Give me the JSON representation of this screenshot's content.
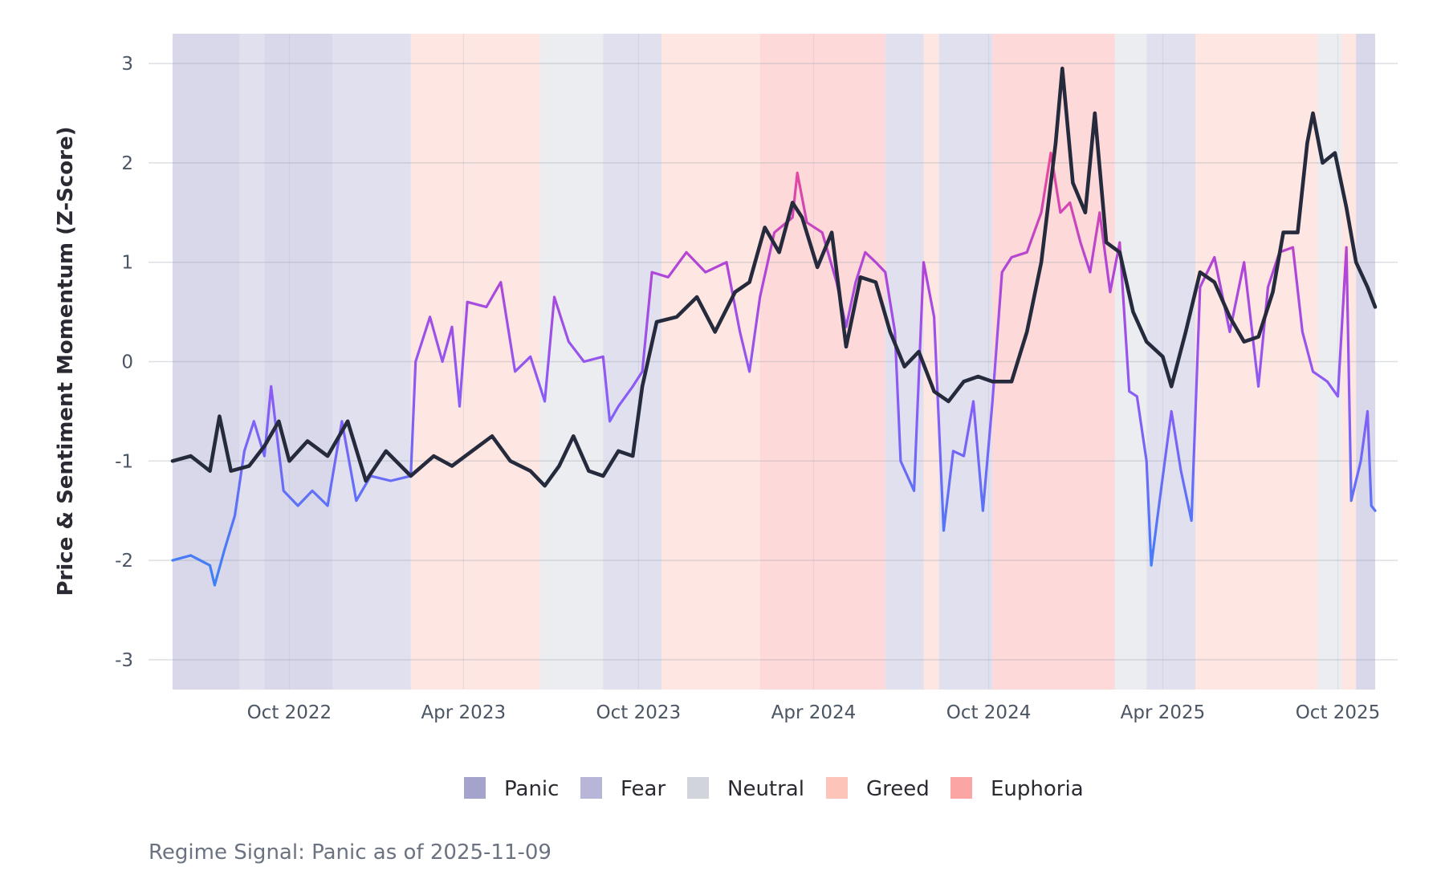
{
  "chart_data": {
    "type": "line",
    "title": "",
    "ylabel": "Price & Sentiment Momentum (Z-Score)",
    "xlabel": "",
    "ylim": [
      -3.3,
      3.3
    ],
    "xlim": [
      "2022-06-01",
      "2025-11-09"
    ],
    "y_ticks": [
      "3",
      "2",
      "1",
      "0",
      "-1",
      "-2",
      "-3"
    ],
    "x_ticks": [
      {
        "date": "2022-10-01",
        "label": "Oct 2022"
      },
      {
        "date": "2023-04-01",
        "label": "Apr 2023"
      },
      {
        "date": "2023-10-01",
        "label": "Oct 2023"
      },
      {
        "date": "2024-04-01",
        "label": "Apr 2024"
      },
      {
        "date": "2024-10-01",
        "label": "Oct 2024"
      },
      {
        "date": "2025-04-01",
        "label": "Apr 2025"
      },
      {
        "date": "2025-10-01",
        "label": "Oct 2025"
      }
    ],
    "grid": true,
    "legend_position": "bottom",
    "legend": [
      {
        "name": "Panic",
        "color": "#a3a3cc"
      },
      {
        "name": "Fear",
        "color": "#b7b5d8"
      },
      {
        "name": "Neutral",
        "color": "#d1d5db"
      },
      {
        "name": "Greed",
        "color": "#fdc4b9"
      },
      {
        "name": "Euphoria",
        "color": "#fca5a5"
      }
    ],
    "regime_bands": [
      {
        "start": "2022-06-01",
        "end": "2022-08-10",
        "regime": "Panic"
      },
      {
        "start": "2022-08-10",
        "end": "2022-09-05",
        "regime": "Fear"
      },
      {
        "start": "2022-09-05",
        "end": "2022-11-15",
        "regime": "Panic"
      },
      {
        "start": "2022-11-15",
        "end": "2023-02-05",
        "regime": "Fear"
      },
      {
        "start": "2023-02-05",
        "end": "2023-06-20",
        "regime": "Greed"
      },
      {
        "start": "2023-06-20",
        "end": "2023-08-25",
        "regime": "Neutral"
      },
      {
        "start": "2023-08-25",
        "end": "2023-10-25",
        "regime": "Fear"
      },
      {
        "start": "2023-10-25",
        "end": "2024-02-05",
        "regime": "Greed"
      },
      {
        "start": "2024-02-05",
        "end": "2024-06-15",
        "regime": "Euphoria"
      },
      {
        "start": "2024-06-15",
        "end": "2024-07-25",
        "regime": "Fear"
      },
      {
        "start": "2024-07-25",
        "end": "2024-08-10",
        "regime": "Greed"
      },
      {
        "start": "2024-08-10",
        "end": "2024-10-05",
        "regime": "Fear"
      },
      {
        "start": "2024-10-05",
        "end": "2025-02-10",
        "regime": "Euphoria"
      },
      {
        "start": "2025-02-10",
        "end": "2025-03-15",
        "regime": "Neutral"
      },
      {
        "start": "2025-03-15",
        "end": "2025-05-05",
        "regime": "Fear"
      },
      {
        "start": "2025-05-05",
        "end": "2025-09-10",
        "regime": "Greed"
      },
      {
        "start": "2025-09-10",
        "end": "2025-10-05",
        "regime": "Neutral"
      },
      {
        "start": "2025-10-05",
        "end": "2025-10-20",
        "regime": "Greed"
      },
      {
        "start": "2025-10-20",
        "end": "2025-11-09",
        "regime": "Panic"
      }
    ],
    "series": [
      {
        "color": "#252a3d",
        "points": [
          [
            "2022-06-01",
            -1.0
          ],
          [
            "2022-06-20",
            -0.95
          ],
          [
            "2022-07-10",
            -1.1
          ],
          [
            "2022-07-20",
            -0.55
          ],
          [
            "2022-08-01",
            -1.1
          ],
          [
            "2022-08-20",
            -1.05
          ],
          [
            "2022-09-05",
            -0.85
          ],
          [
            "2022-09-20",
            -0.6
          ],
          [
            "2022-10-01",
            -1.0
          ],
          [
            "2022-10-20",
            -0.8
          ],
          [
            "2022-11-10",
            -0.95
          ],
          [
            "2022-12-01",
            -0.6
          ],
          [
            "2022-12-20",
            -1.2
          ],
          [
            "2023-01-10",
            -0.9
          ],
          [
            "2023-02-05",
            -1.15
          ],
          [
            "2023-03-01",
            -0.95
          ],
          [
            "2023-03-20",
            -1.05
          ],
          [
            "2023-04-10",
            -0.9
          ],
          [
            "2023-05-01",
            -0.75
          ],
          [
            "2023-05-20",
            -1.0
          ],
          [
            "2023-06-10",
            -1.1
          ],
          [
            "2023-06-25",
            -1.25
          ],
          [
            "2023-07-10",
            -1.05
          ],
          [
            "2023-07-25",
            -0.75
          ],
          [
            "2023-08-10",
            -1.1
          ],
          [
            "2023-08-25",
            -1.15
          ],
          [
            "2023-09-10",
            -0.9
          ],
          [
            "2023-09-25",
            -0.95
          ],
          [
            "2023-10-05",
            -0.25
          ],
          [
            "2023-10-20",
            0.4
          ],
          [
            "2023-11-10",
            0.45
          ],
          [
            "2023-12-01",
            0.65
          ],
          [
            "2023-12-20",
            0.3
          ],
          [
            "2024-01-10",
            0.7
          ],
          [
            "2024-01-25",
            0.8
          ],
          [
            "2024-02-10",
            1.35
          ],
          [
            "2024-02-25",
            1.1
          ],
          [
            "2024-03-10",
            1.6
          ],
          [
            "2024-03-20",
            1.45
          ],
          [
            "2024-04-05",
            0.95
          ],
          [
            "2024-04-20",
            1.3
          ],
          [
            "2024-05-05",
            0.15
          ],
          [
            "2024-05-20",
            0.85
          ],
          [
            "2024-06-05",
            0.8
          ],
          [
            "2024-06-20",
            0.3
          ],
          [
            "2024-07-05",
            -0.05
          ],
          [
            "2024-07-20",
            0.1
          ],
          [
            "2024-08-05",
            -0.3
          ],
          [
            "2024-08-20",
            -0.4
          ],
          [
            "2024-09-05",
            -0.2
          ],
          [
            "2024-09-20",
            -0.15
          ],
          [
            "2024-10-05",
            -0.2
          ],
          [
            "2024-10-25",
            -0.2
          ],
          [
            "2024-11-10",
            0.3
          ],
          [
            "2024-11-25",
            1.0
          ],
          [
            "2024-12-10",
            2.2
          ],
          [
            "2024-12-17",
            2.95
          ],
          [
            "2024-12-28",
            1.8
          ],
          [
            "2025-01-10",
            1.5
          ],
          [
            "2025-01-20",
            2.5
          ],
          [
            "2025-02-01",
            1.2
          ],
          [
            "2025-02-15",
            1.1
          ],
          [
            "2025-03-01",
            0.5
          ],
          [
            "2025-03-15",
            0.2
          ],
          [
            "2025-04-01",
            0.05
          ],
          [
            "2025-04-10",
            -0.25
          ],
          [
            "2025-04-25",
            0.3
          ],
          [
            "2025-05-10",
            0.9
          ],
          [
            "2025-05-25",
            0.8
          ],
          [
            "2025-06-10",
            0.45
          ],
          [
            "2025-06-25",
            0.2
          ],
          [
            "2025-07-10",
            0.25
          ],
          [
            "2025-07-25",
            0.7
          ],
          [
            "2025-08-05",
            1.3
          ],
          [
            "2025-08-20",
            1.3
          ],
          [
            "2025-08-30",
            2.2
          ],
          [
            "2025-09-05",
            2.5
          ],
          [
            "2025-09-15",
            2.0
          ],
          [
            "2025-09-28",
            2.1
          ],
          [
            "2025-10-10",
            1.55
          ],
          [
            "2025-10-20",
            1.0
          ],
          [
            "2025-11-01",
            0.75
          ],
          [
            "2025-11-09",
            0.55
          ]
        ]
      },
      {
        "color": "#8b5cf6",
        "gradient": true,
        "points": [
          [
            "2022-06-01",
            -2.0
          ],
          [
            "2022-06-20",
            -1.95
          ],
          [
            "2022-07-10",
            -2.05
          ],
          [
            "2022-07-15",
            -2.25
          ],
          [
            "2022-07-25",
            -1.9
          ],
          [
            "2022-08-05",
            -1.55
          ],
          [
            "2022-08-15",
            -0.9
          ],
          [
            "2022-08-25",
            -0.6
          ],
          [
            "2022-09-05",
            -0.95
          ],
          [
            "2022-09-12",
            -0.25
          ],
          [
            "2022-09-25",
            -1.3
          ],
          [
            "2022-10-10",
            -1.45
          ],
          [
            "2022-10-25",
            -1.3
          ],
          [
            "2022-11-10",
            -1.45
          ],
          [
            "2022-11-25",
            -0.6
          ],
          [
            "2022-12-10",
            -1.4
          ],
          [
            "2022-12-25",
            -1.15
          ],
          [
            "2023-01-15",
            -1.2
          ],
          [
            "2023-02-05",
            -1.15
          ],
          [
            "2023-02-10",
            0.0
          ],
          [
            "2023-02-25",
            0.45
          ],
          [
            "2023-03-10",
            0.0
          ],
          [
            "2023-03-20",
            0.35
          ],
          [
            "2023-03-28",
            -0.45
          ],
          [
            "2023-04-05",
            0.6
          ],
          [
            "2023-04-25",
            0.55
          ],
          [
            "2023-05-10",
            0.8
          ],
          [
            "2023-05-25",
            -0.1
          ],
          [
            "2023-06-10",
            0.05
          ],
          [
            "2023-06-25",
            -0.4
          ],
          [
            "2023-07-05",
            0.65
          ],
          [
            "2023-07-20",
            0.2
          ],
          [
            "2023-08-05",
            0.0
          ],
          [
            "2023-08-25",
            0.05
          ],
          [
            "2023-09-01",
            -0.6
          ],
          [
            "2023-09-10",
            -0.45
          ],
          [
            "2023-09-25",
            -0.25
          ],
          [
            "2023-10-05",
            -0.1
          ],
          [
            "2023-10-15",
            0.9
          ],
          [
            "2023-11-01",
            0.85
          ],
          [
            "2023-11-20",
            1.1
          ],
          [
            "2023-12-10",
            0.9
          ],
          [
            "2024-01-01",
            1.0
          ],
          [
            "2024-01-15",
            0.3
          ],
          [
            "2024-01-25",
            -0.1
          ],
          [
            "2024-02-05",
            0.65
          ],
          [
            "2024-02-20",
            1.3
          ],
          [
            "2024-03-10",
            1.45
          ],
          [
            "2024-03-15",
            1.9
          ],
          [
            "2024-03-25",
            1.4
          ],
          [
            "2024-04-10",
            1.3
          ],
          [
            "2024-04-25",
            0.8
          ],
          [
            "2024-05-05",
            0.35
          ],
          [
            "2024-05-15",
            0.8
          ],
          [
            "2024-05-25",
            1.1
          ],
          [
            "2024-06-05",
            1.0
          ],
          [
            "2024-06-15",
            0.9
          ],
          [
            "2024-06-25",
            0.3
          ],
          [
            "2024-07-01",
            -1.0
          ],
          [
            "2024-07-15",
            -1.3
          ],
          [
            "2024-07-25",
            1.0
          ],
          [
            "2024-08-05",
            0.45
          ],
          [
            "2024-08-15",
            -1.7
          ],
          [
            "2024-08-25",
            -0.9
          ],
          [
            "2024-09-05",
            -0.95
          ],
          [
            "2024-09-15",
            -0.4
          ],
          [
            "2024-09-25",
            -1.5
          ],
          [
            "2024-10-05",
            -0.4
          ],
          [
            "2024-10-15",
            0.9
          ],
          [
            "2024-10-25",
            1.05
          ],
          [
            "2024-11-10",
            1.1
          ],
          [
            "2024-11-25",
            1.5
          ],
          [
            "2024-12-05",
            2.1
          ],
          [
            "2024-12-15",
            1.5
          ],
          [
            "2024-12-25",
            1.6
          ],
          [
            "2025-01-05",
            1.2
          ],
          [
            "2025-01-15",
            0.9
          ],
          [
            "2025-01-25",
            1.5
          ],
          [
            "2025-02-05",
            0.7
          ],
          [
            "2025-02-15",
            1.2
          ],
          [
            "2025-02-25",
            -0.3
          ],
          [
            "2025-03-05",
            -0.35
          ],
          [
            "2025-03-15",
            -1.0
          ],
          [
            "2025-03-20",
            -2.05
          ],
          [
            "2025-03-30",
            -1.3
          ],
          [
            "2025-04-10",
            -0.5
          ],
          [
            "2025-04-20",
            -1.1
          ],
          [
            "2025-05-01",
            -1.6
          ],
          [
            "2025-05-10",
            0.75
          ],
          [
            "2025-05-25",
            1.05
          ],
          [
            "2025-06-10",
            0.3
          ],
          [
            "2025-06-25",
            1.0
          ],
          [
            "2025-07-10",
            -0.25
          ],
          [
            "2025-07-20",
            0.75
          ],
          [
            "2025-08-01",
            1.1
          ],
          [
            "2025-08-15",
            1.15
          ],
          [
            "2025-08-25",
            0.3
          ],
          [
            "2025-09-05",
            -0.1
          ],
          [
            "2025-09-20",
            -0.2
          ],
          [
            "2025-10-01",
            -0.35
          ],
          [
            "2025-10-10",
            1.15
          ],
          [
            "2025-10-15",
            -1.4
          ],
          [
            "2025-10-25",
            -1.0
          ],
          [
            "2025-11-01",
            -0.5
          ],
          [
            "2025-11-05",
            -1.45
          ],
          [
            "2025-11-09",
            -1.5
          ]
        ]
      }
    ]
  },
  "caption": "Regime Signal: Panic as of 2025-11-09"
}
